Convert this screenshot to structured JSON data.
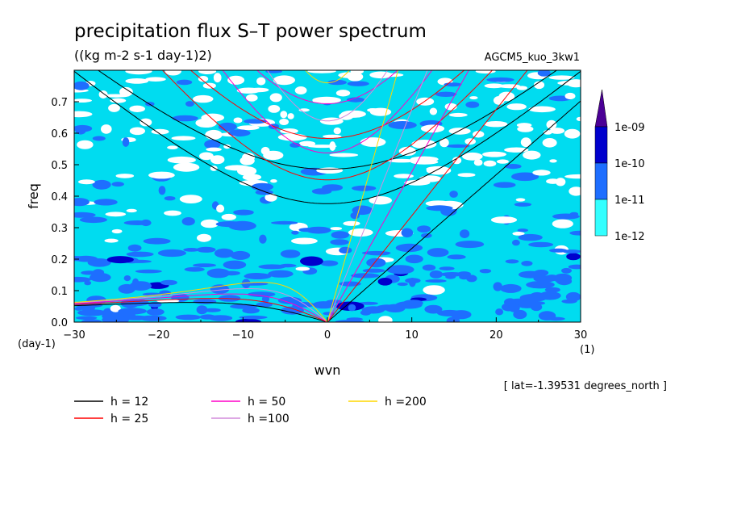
{
  "chart_data": {
    "type": "heatmap",
    "title": "precipitation flux S–T power spectrum",
    "subtitle": "((kg m-2 s-1 day-1)2)",
    "experiment": "AGCM5_kuo_3kw1",
    "xlabel": "wvn",
    "ylabel": "freq",
    "x_unit": "(1)",
    "y_unit": "(day-1)",
    "xlim": [
      -30,
      30
    ],
    "ylim": [
      0,
      0.8
    ],
    "x_ticks": [
      "−30",
      "−20",
      "−10",
      "0",
      "10",
      "20",
      "30"
    ],
    "x_tick_values": [
      -30,
      -20,
      -10,
      0,
      10,
      20,
      30
    ],
    "y_ticks": [
      "0.0",
      "0.1",
      "0.2",
      "0.3",
      "0.4",
      "0.5",
      "0.6",
      "0.7"
    ],
    "y_tick_values": [
      0,
      0.1,
      0.2,
      0.3,
      0.4,
      0.5,
      0.6,
      0.7
    ],
    "grid": false,
    "colorbar": {
      "levels": [
        "1e-12",
        "1e-11",
        "1e-10",
        "1e-09"
      ],
      "colors": [
        "#33ffff",
        "#1e6eff",
        "#0000cd",
        "#4b0096"
      ]
    },
    "background_color": "#00dcf0",
    "blob_colors": [
      "#ffffff",
      "#1e6eff",
      "#0000cd"
    ],
    "annotation": "[ lat=-1.39531 degrees_north ]",
    "dispersion_curves": [
      {
        "label": "h = 12",
        "equivalent_depth_m": 12,
        "color": "#000000"
      },
      {
        "label": "h = 25",
        "equivalent_depth_m": 25,
        "color": "#ff0000"
      },
      {
        "label": "h = 50",
        "equivalent_depth_m": 50,
        "color": "#ff00c8"
      },
      {
        "label": "h =100",
        "equivalent_depth_m": 100,
        "color": "#d28cdc"
      },
      {
        "label": "h =200",
        "equivalent_depth_m": 200,
        "color": "#ffd700"
      }
    ]
  }
}
